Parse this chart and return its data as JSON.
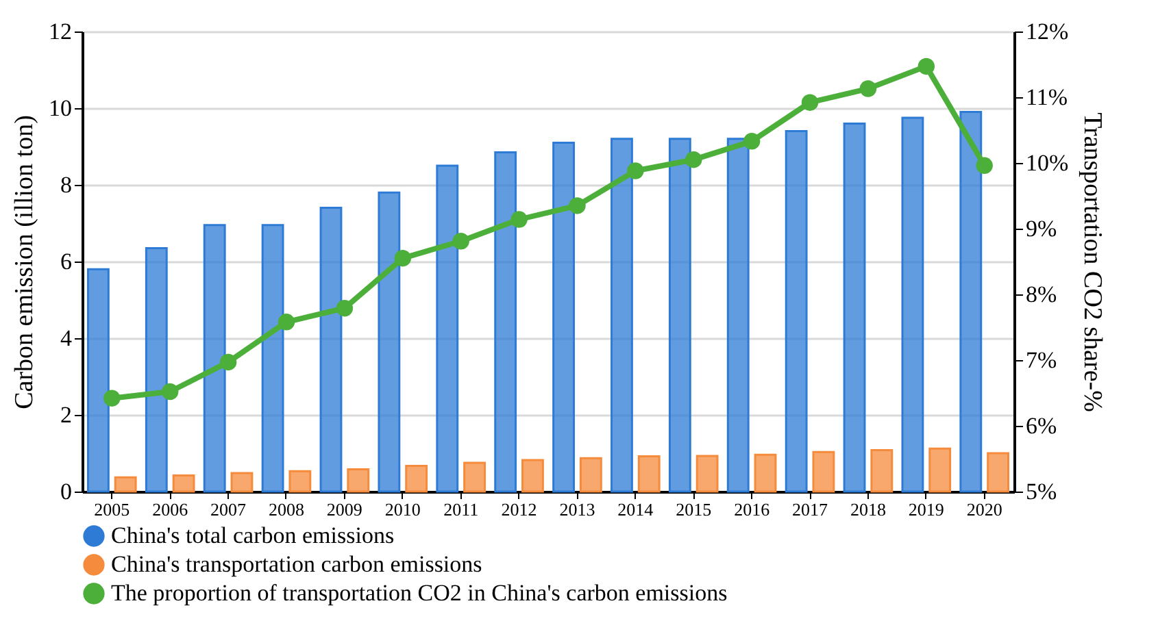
{
  "chart_data": {
    "type": "bar",
    "ylabel": "Carbon emission  (illion ton)",
    "y2label": "Transportation CO2 share-%",
    "categories": [
      "2005",
      "2006",
      "2007",
      "2008",
      "2009",
      "2010",
      "2011",
      "2012",
      "2013",
      "2014",
      "2015",
      "2016",
      "2017",
      "2018",
      "2019",
      "2020"
    ],
    "series": [
      {
        "name": "China's total carbon emissions",
        "color": "#2e7bd6",
        "values": [
          5.8,
          6.35,
          6.95,
          6.95,
          7.4,
          7.8,
          8.5,
          8.85,
          9.1,
          9.2,
          9.2,
          9.2,
          9.4,
          9.6,
          9.75,
          9.9
        ]
      },
      {
        "name": "China's transportation carbon emissions",
        "color": "#f58b3c",
        "values": [
          0.37,
          0.42,
          0.48,
          0.53,
          0.58,
          0.67,
          0.75,
          0.82,
          0.87,
          0.92,
          0.93,
          0.96,
          1.03,
          1.08,
          1.12,
          1.0
        ]
      },
      {
        "name": "The proportion of transportation CO2 in China's carbon emissions",
        "type": "line",
        "axis": "y2",
        "color": "#4caf3a",
        "marker": "circle",
        "line_style": "solid",
        "values": [
          6.42,
          6.52,
          6.97,
          7.58,
          7.79,
          8.55,
          8.81,
          9.14,
          9.35,
          9.88,
          10.05,
          10.33,
          10.92,
          11.13,
          11.47,
          9.96
        ]
      }
    ],
    "ylim": [
      0,
      12
    ],
    "yticks": [
      0,
      2,
      4,
      6,
      8,
      10,
      12
    ],
    "y2lim": [
      5,
      12
    ],
    "y2ticks": [
      {
        "value": 5,
        "label": "5%"
      },
      {
        "value": 6,
        "label": "6%"
      },
      {
        "value": 7,
        "label": "7%"
      },
      {
        "value": 8,
        "label": "8%"
      },
      {
        "value": 9,
        "label": "9%"
      },
      {
        "value": 10,
        "label": "10%"
      },
      {
        "value": 11,
        "label": "11%"
      },
      {
        "value": 12,
        "label": "12%"
      }
    ],
    "grid": "y",
    "legend": "bottom"
  }
}
